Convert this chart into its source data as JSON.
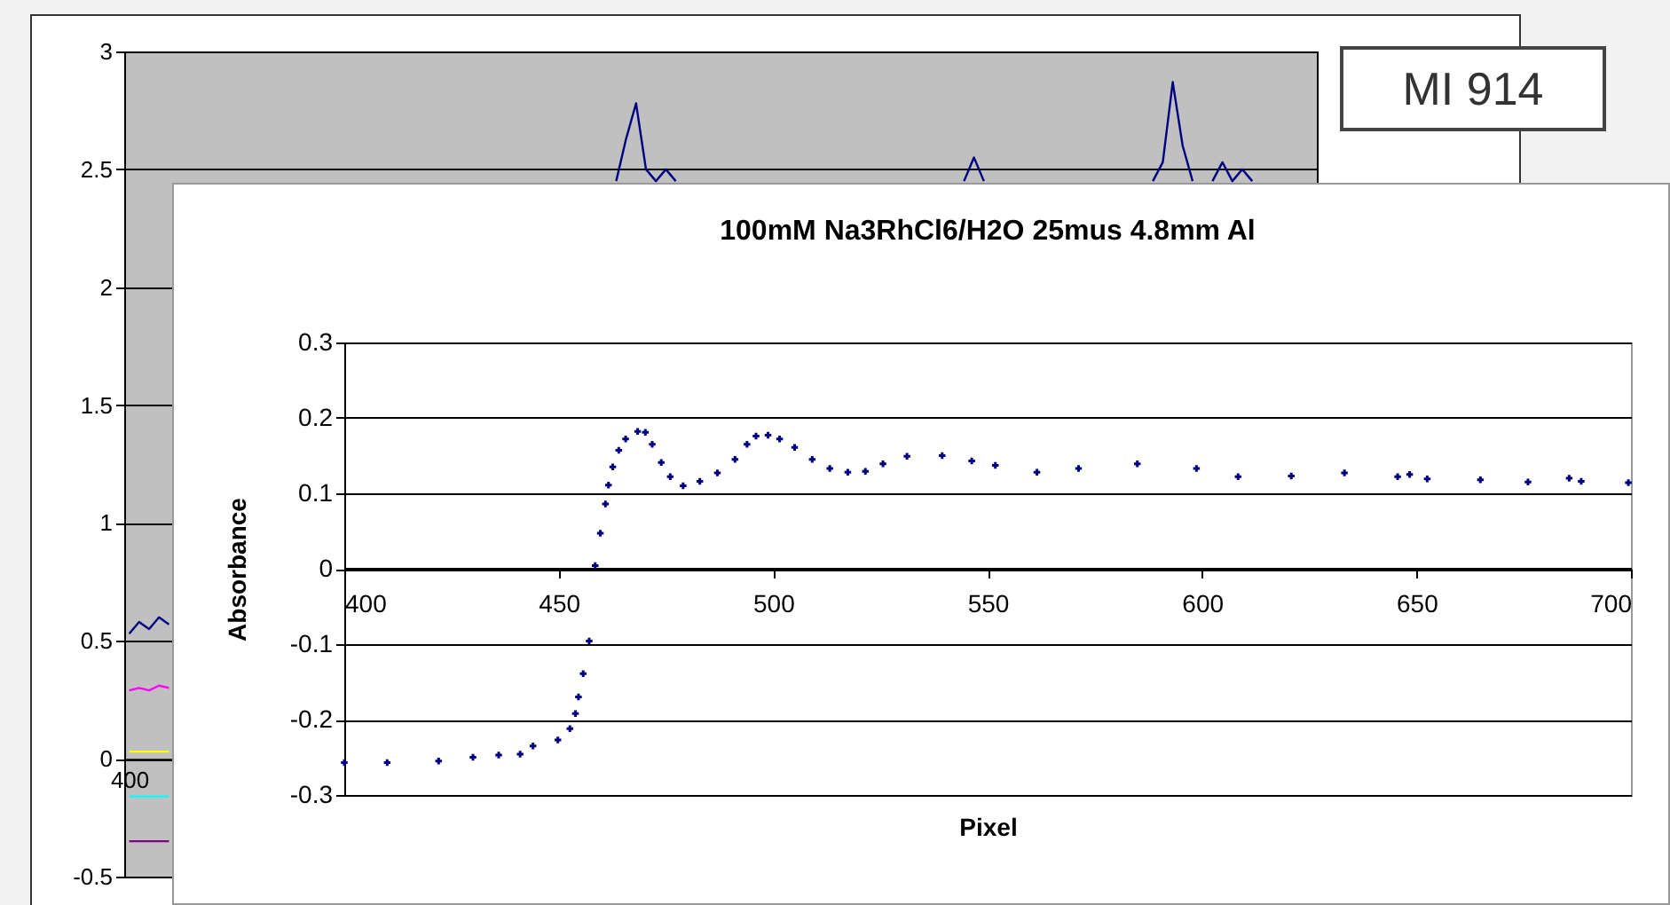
{
  "chart_data": [
    {
      "type": "line",
      "annotations": [
        "MI 914"
      ],
      "ylim": [
        -0.5,
        3
      ],
      "yticks": [
        -0.5,
        0,
        0.5,
        1,
        1.5,
        2,
        2.5,
        3
      ],
      "grid": "y",
      "categories": [
        "400",
        null,
        null,
        null,
        null,
        null,
        null,
        null,
        null,
        null,
        null,
        null,
        null,
        null,
        null,
        null,
        null,
        null,
        null,
        null,
        null,
        null,
        null,
        null,
        null,
        null,
        null,
        null,
        null,
        null,
        null,
        null,
        null,
        null,
        null,
        null,
        null,
        null,
        null,
        null,
        null,
        null,
        null,
        null,
        null,
        null,
        null,
        null,
        null,
        null,
        null,
        null,
        null,
        null,
        null,
        null,
        null,
        null,
        null,
        null,
        null,
        null,
        null,
        null,
        null,
        null,
        null,
        null,
        null,
        null,
        null,
        null,
        null,
        null,
        null,
        null,
        null,
        null,
        null,
        null,
        null,
        null,
        null,
        null,
        null,
        null,
        null,
        null,
        null,
        null,
        null,
        null,
        null,
        null,
        null,
        null,
        null,
        null,
        null,
        null,
        null,
        null,
        null,
        null,
        null,
        null,
        null,
        null,
        null,
        null,
        null,
        null,
        null,
        null,
        null,
        null,
        null,
        null,
        null,
        null
      ],
      "series": [
        {
          "color": "#000080",
          "values": [
            0.53,
            0.58,
            0.55,
            0.6,
            0.57,
            null,
            null,
            null,
            null,
            null,
            null,
            null,
            null,
            null,
            null,
            null,
            null,
            null,
            null,
            null,
            null,
            null,
            null,
            null,
            null,
            null,
            null,
            null,
            null,
            null,
            null,
            null,
            null,
            null,
            null,
            null,
            null,
            null,
            null,
            null,
            null,
            null,
            null,
            null,
            null,
            null,
            null,
            null,
            null,
            2.45,
            2.63,
            2.78,
            2.5,
            2.45,
            2.5,
            2.45,
            null,
            null,
            null,
            null,
            null,
            null,
            null,
            null,
            null,
            null,
            null,
            null,
            null,
            null,
            null,
            null,
            null,
            null,
            null,
            null,
            null,
            null,
            null,
            null,
            null,
            null,
            null,
            null,
            2.45,
            2.55,
            2.45,
            null,
            null,
            null,
            null,
            null,
            null,
            null,
            null,
            null,
            null,
            null,
            null,
            null,
            null,
            null,
            null,
            2.45,
            2.53,
            2.87,
            2.6,
            2.45,
            null,
            2.45,
            2.53,
            2.45,
            2.5,
            2.45,
            null,
            null,
            null,
            null,
            null,
            null
          ]
        },
        {
          "color": "#ff00ff",
          "values": [
            0.29,
            0.3,
            0.29,
            0.31,
            0.3,
            null,
            null,
            null,
            null,
            null,
            null,
            null,
            null,
            null,
            null,
            null,
            null,
            null,
            null,
            null,
            null,
            null,
            null,
            null,
            null,
            null,
            null,
            null,
            null,
            null,
            null,
            null,
            null,
            null,
            null,
            null,
            null,
            null,
            null,
            null,
            null,
            null,
            null,
            null,
            null,
            null,
            null,
            null,
            null,
            null,
            null,
            null,
            null,
            null,
            null,
            null,
            null,
            null,
            null,
            null,
            null,
            null,
            null,
            null,
            null,
            null,
            null,
            null,
            null,
            null,
            null,
            null,
            null,
            null,
            null,
            null,
            null,
            null,
            null,
            null,
            null,
            null,
            null,
            null,
            null,
            null,
            null,
            null,
            null,
            null,
            null,
            null,
            null,
            null,
            null,
            null,
            null,
            null,
            null,
            null,
            null,
            null,
            null,
            null,
            null,
            null,
            null,
            null,
            null,
            null,
            null,
            null,
            null,
            null,
            null,
            null,
            null,
            null,
            null,
            null
          ]
        },
        {
          "color": "#ffff00",
          "values": [
            0.03,
            0.03,
            0.03,
            0.03,
            0.03,
            null,
            null,
            null,
            null,
            null,
            null,
            null,
            null,
            null,
            null,
            null,
            null,
            null,
            null,
            null,
            null,
            null,
            null,
            null,
            null,
            null,
            null,
            null,
            null,
            null,
            null,
            null,
            null,
            null,
            null,
            null,
            null,
            null,
            null,
            null,
            null,
            null,
            null,
            null,
            null,
            null,
            null,
            null,
            null,
            null,
            null,
            null,
            null,
            null,
            null,
            null,
            null,
            null,
            null,
            null,
            null,
            null,
            null,
            null,
            null,
            null,
            null,
            null,
            null,
            null,
            null,
            null,
            null,
            null,
            null,
            null,
            null,
            null,
            null,
            null,
            null,
            null,
            null,
            null,
            null,
            null,
            null,
            null,
            null,
            null,
            null,
            null,
            null,
            null,
            null,
            null,
            null,
            null,
            null,
            null,
            null,
            null,
            null,
            null,
            null,
            null,
            null,
            null,
            null,
            null,
            null,
            null,
            null,
            null,
            null,
            null,
            null,
            null,
            null,
            null
          ]
        },
        {
          "color": "#00ffff",
          "values": [
            -0.16,
            -0.16,
            -0.16,
            -0.16,
            -0.16,
            null,
            null,
            null,
            null,
            null,
            null,
            null,
            null,
            null,
            null,
            null,
            null,
            null,
            null,
            null,
            null,
            null,
            null,
            null,
            null,
            null,
            null,
            null,
            null,
            null,
            null,
            null,
            null,
            null,
            null,
            null,
            null,
            null,
            null,
            null,
            null,
            null,
            null,
            null,
            null,
            null,
            null,
            null,
            null,
            null,
            null,
            null,
            null,
            null,
            null,
            null,
            null,
            null,
            null,
            null,
            null,
            null,
            null,
            null,
            null,
            null,
            null,
            null,
            null,
            null,
            null,
            null,
            null,
            null,
            null,
            null,
            null,
            null,
            null,
            null,
            null,
            null,
            null,
            null,
            null,
            null,
            null,
            null,
            null,
            null,
            null,
            null,
            null,
            null,
            null,
            null,
            null,
            null,
            null,
            null,
            null,
            null,
            null,
            null,
            null,
            null,
            null,
            null,
            null,
            null,
            null,
            null,
            null,
            null,
            null,
            null,
            null,
            null,
            null,
            null
          ]
        },
        {
          "color": "#800080",
          "values": [
            -0.35,
            -0.35,
            -0.35,
            -0.35,
            -0.35,
            null,
            null,
            null,
            null,
            null,
            null,
            null,
            null,
            null,
            null,
            null,
            null,
            null,
            null,
            null,
            null,
            null,
            null,
            null,
            null,
            null,
            null,
            null,
            null,
            null,
            null,
            null,
            null,
            null,
            null,
            null,
            null,
            null,
            null,
            null,
            null,
            null,
            null,
            null,
            null,
            null,
            null,
            null,
            null,
            null,
            null,
            null,
            null,
            null,
            null,
            null,
            null,
            null,
            null,
            null,
            null,
            null,
            null,
            null,
            null,
            null,
            null,
            null,
            null,
            null,
            null,
            null,
            null,
            null,
            null,
            null,
            null,
            null,
            null,
            null,
            null,
            null,
            null,
            null,
            null,
            null,
            null,
            null,
            null,
            null,
            null,
            null,
            null,
            null,
            null,
            null,
            null,
            null,
            null,
            null,
            null,
            null,
            null,
            null,
            null,
            null,
            null,
            null,
            null,
            null,
            null,
            null,
            null,
            null,
            null,
            null,
            null,
            null,
            null,
            null
          ]
        }
      ]
    },
    {
      "type": "scatter",
      "title": "100mM Na3RhCl6/H2O 25mus 4.8mm Al",
      "xlabel": "Pixel",
      "ylabel": "Absorbance",
      "marker": "cross",
      "grid": "y",
      "xlim": [
        400,
        700
      ],
      "xticks": [
        400,
        450,
        500,
        550,
        600,
        650,
        700
      ],
      "ylim": [
        -0.3,
        0.3
      ],
      "yticks": [
        -0.3,
        -0.2,
        -0.1,
        0,
        0.1,
        0.2,
        0.3
      ],
      "series": [
        {
          "color": "#000080",
          "x": [
            400,
            410,
            422,
            430,
            436,
            441,
            444,
            449.8,
            452.6,
            453.9,
            454.6,
            455.7,
            457.1,
            458.5,
            459.7,
            460.9,
            461.6,
            462.6,
            464,
            465.6,
            468.4,
            470.2,
            471.8,
            473.9,
            476,
            479,
            482.9,
            487,
            491.1,
            493.9,
            496,
            498.8,
            501.5,
            505,
            509.1,
            513.2,
            517.4,
            521.5,
            525.6,
            531.2,
            539.4,
            546.3,
            551.8,
            561.5,
            571.2,
            584.9,
            598.7,
            608.4,
            620.8,
            633.2,
            645.6,
            648.4,
            652.5,
            664.9,
            676,
            685.6,
            688.4,
            699.4
          ],
          "values": [
            -0.257,
            -0.257,
            -0.255,
            -0.25,
            -0.247,
            -0.246,
            -0.235,
            -0.227,
            -0.212,
            -0.192,
            -0.17,
            -0.139,
            -0.096,
            0.004,
            0.047,
            0.086,
            0.111,
            0.135,
            0.157,
            0.172,
            0.182,
            0.181,
            0.165,
            0.141,
            0.122,
            0.11,
            0.116,
            0.127,
            0.145,
            0.165,
            0.176,
            0.177,
            0.172,
            0.161,
            0.145,
            0.133,
            0.128,
            0.129,
            0.139,
            0.149,
            0.15,
            0.143,
            0.137,
            0.128,
            0.133,
            0.139,
            0.133,
            0.122,
            0.123,
            0.127,
            0.122,
            0.125,
            0.119,
            0.118,
            0.115,
            0.12,
            0.116,
            0.114
          ]
        }
      ]
    }
  ]
}
